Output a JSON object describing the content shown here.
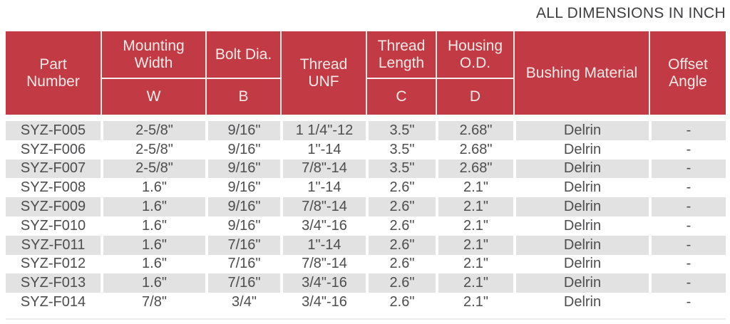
{
  "note": "ALL DIMENSIONS IN INCH",
  "colors": {
    "header_red": "#c23a44",
    "header_text": "#f8ebe9",
    "stripe_gray": "#e1e2e1",
    "body_text": "#4d4d4f",
    "note_text": "#3d3d3f"
  },
  "table": {
    "columns": [
      {
        "label": "Part\nNumber",
        "sub": null
      },
      {
        "label": "Mounting\nWidth",
        "sub": "W"
      },
      {
        "label": "Bolt Dia.",
        "sub": "B"
      },
      {
        "label": "Thread\nUNF",
        "sub": null
      },
      {
        "label": "Thread\nLength",
        "sub": "C"
      },
      {
        "label": "Housing\nO.D.",
        "sub": "D"
      },
      {
        "label": "Bushing Material",
        "sub": null
      },
      {
        "label": "Offset\nAngle",
        "sub": null
      }
    ],
    "rows": [
      [
        "SYZ-F005",
        "2-5/8\"",
        "9/16\"",
        "1 1/4\"-12",
        "3.5\"",
        "2.68\"",
        "Delrin",
        "-"
      ],
      [
        "SYZ-F006",
        "2-5/8\"",
        "9/16\"",
        "1\"-14",
        "3.5\"",
        "2.68\"",
        "Delrin",
        "-"
      ],
      [
        "SYZ-F007",
        "2-5/8\"",
        "9/16\"",
        "7/8\"-14",
        "3.5\"",
        "2.68\"",
        "Delrin",
        "-"
      ],
      [
        "SYZ-F008",
        "1.6\"",
        "9/16\"",
        "1\"-14",
        "2.6\"",
        "2.1\"",
        "Delrin",
        "-"
      ],
      [
        "SYZ-F009",
        "1.6\"",
        "9/16\"",
        "7/8\"-14",
        "2.6\"",
        "2.1\"",
        "Delrin",
        "-"
      ],
      [
        "SYZ-F010",
        "1.6\"",
        "9/16\"",
        "3/4\"-16",
        "2.6\"",
        "2.1\"",
        "Delrin",
        "-"
      ],
      [
        "SYZ-F011",
        "1.6\"",
        "7/16\"",
        "1\"-14",
        "2.6\"",
        "2.1\"",
        "Delrin",
        "-"
      ],
      [
        "SYZ-F012",
        "1.6\"",
        "7/16\"",
        "7/8\"-14",
        "2.6\"",
        "2.1\"",
        "Delrin",
        "-"
      ],
      [
        "SYZ-F013",
        "1.6\"",
        "7/16\"",
        "3/4\"-16",
        "2.6\"",
        "2.1\"",
        "Delrin",
        "-"
      ],
      [
        "SYZ-F014",
        "7/8\"",
        "3/4\"",
        "3/4\"-16",
        "2.6\"",
        "2.1\"",
        "Delrin",
        "-"
      ]
    ]
  }
}
